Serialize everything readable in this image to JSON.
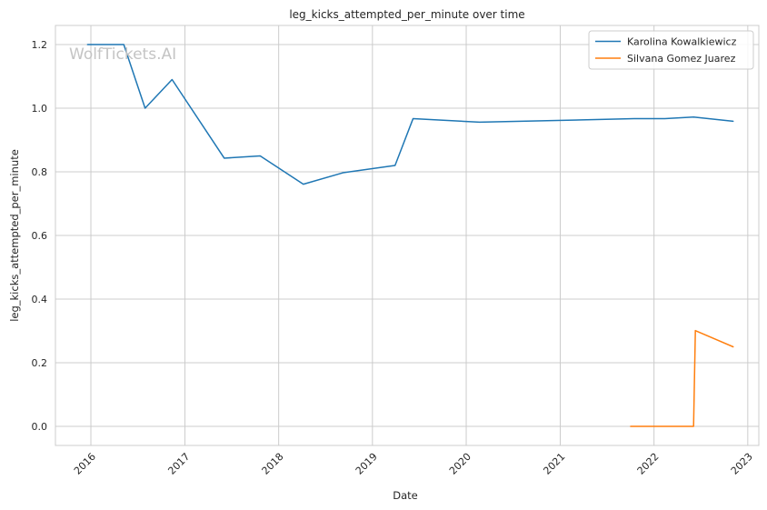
{
  "watermark": "WolfTickets.AI",
  "chart_data": {
    "type": "line",
    "title": "leg_kicks_attempted_per_minute over time",
    "xlabel": "Date",
    "ylabel": "leg_kicks_attempted_per_minute",
    "x_ticks": [
      "2016",
      "2017",
      "2018",
      "2019",
      "2020",
      "2021",
      "2022",
      "2023"
    ],
    "y_ticks": [
      "0.0",
      "0.2",
      "0.4",
      "0.6",
      "0.8",
      "1.0",
      "1.2"
    ],
    "xlim": [
      "2015-08-16",
      "2023-02-13"
    ],
    "ylim": [
      -0.06,
      1.26
    ],
    "grid": true,
    "legend_position": "top-right",
    "series": [
      {
        "name": "Karolina Kowalkiewicz",
        "color": "#1f77b4",
        "points": [
          {
            "x": "2015-12-19",
            "y": 1.2
          },
          {
            "x": "2016-05-08",
            "y": 1.2
          },
          {
            "x": "2016-07-30",
            "y": 1.0
          },
          {
            "x": "2016-11-12",
            "y": 1.09
          },
          {
            "x": "2017-06-03",
            "y": 0.843
          },
          {
            "x": "2017-10-21",
            "y": 0.85
          },
          {
            "x": "2018-04-07",
            "y": 0.761
          },
          {
            "x": "2018-09-08",
            "y": 0.797
          },
          {
            "x": "2019-03-30",
            "y": 0.82
          },
          {
            "x": "2019-06-08",
            "y": 0.967
          },
          {
            "x": "2020-02-22",
            "y": 0.956
          },
          {
            "x": "2021-10-16",
            "y": 0.967
          },
          {
            "x": "2022-02-12",
            "y": 0.967
          },
          {
            "x": "2022-06-04",
            "y": 0.972
          },
          {
            "x": "2022-11-05",
            "y": 0.959
          }
        ]
      },
      {
        "name": "Silvana Gomez Juarez",
        "color": "#ff7f0e",
        "points": [
          {
            "x": "2021-10-02",
            "y": 0.0
          },
          {
            "x": "2022-06-04",
            "y": 0.0
          },
          {
            "x": "2022-06-11",
            "y": 0.301
          },
          {
            "x": "2022-11-05",
            "y": 0.25
          }
        ]
      }
    ]
  }
}
